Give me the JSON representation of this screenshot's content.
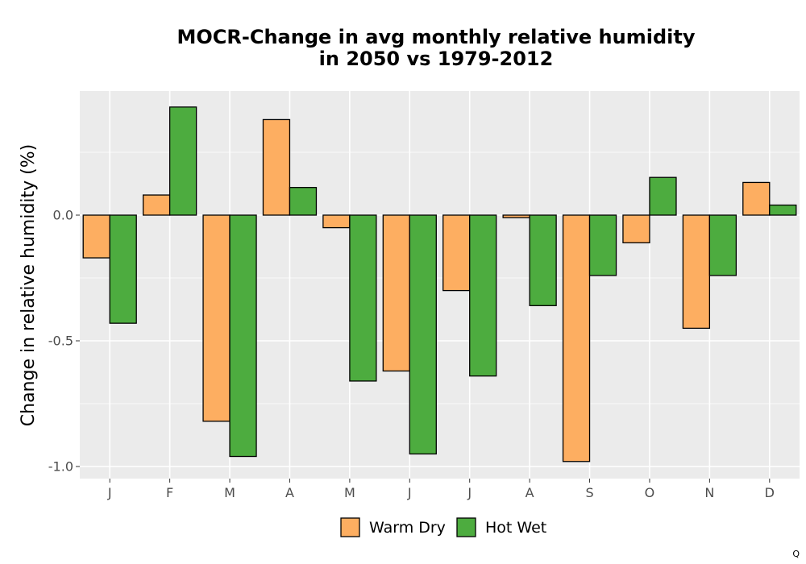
{
  "chart_data": {
    "type": "bar",
    "title": [
      "MOCR-Change in avg monthly relative humidity",
      "in 2050 vs 1979-2012"
    ],
    "xlabel": "",
    "ylabel": "Change in relative humidity (%)",
    "categories": [
      "J",
      "F",
      "M",
      "A",
      "M",
      "J",
      "J",
      "A",
      "S",
      "O",
      "N",
      "D"
    ],
    "series": [
      {
        "name": "Warm Dry",
        "color": "#FDAE61",
        "values": [
          -0.17,
          0.08,
          -0.82,
          0.38,
          -0.05,
          -0.62,
          -0.3,
          -0.01,
          -0.98,
          -0.11,
          -0.45,
          0.13
        ]
      },
      {
        "name": "Hot Wet",
        "color": "#4DAC3F",
        "values": [
          -0.43,
          0.43,
          -0.96,
          0.11,
          -0.66,
          -0.95,
          -0.64,
          -0.36,
          -0.24,
          0.15,
          -0.24,
          0.04
        ]
      }
    ],
    "yticks": [
      0.0,
      -0.5,
      -1.0
    ],
    "ytick_labels": [
      "0.0",
      "-0.5",
      "-1.0"
    ],
    "ylim": [
      -1.05,
      0.5
    ],
    "grid": true,
    "legend_position": "bottom",
    "panel_background": "#EBEBEB"
  },
  "corner_mark": "Q"
}
